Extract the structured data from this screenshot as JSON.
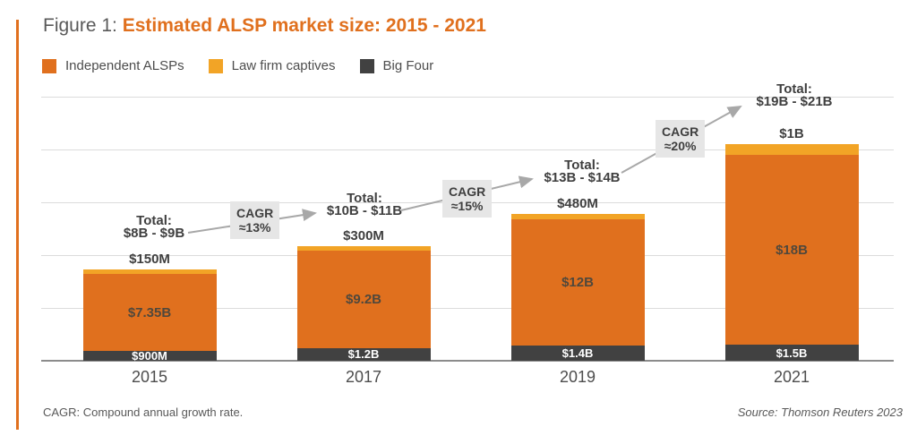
{
  "title": {
    "prefix": "Figure 1: ",
    "main": "Estimated ALSP market size: 2015 - 2021"
  },
  "legend": [
    {
      "label": "Independent ALSPs",
      "color": "#E0701E"
    },
    {
      "label": "Law firm captives",
      "color": "#F2A426"
    },
    {
      "label": "Big Four",
      "color": "#414141"
    }
  ],
  "footer": {
    "left": "CAGR: Compound annual growth rate.",
    "right": "Source: Thomson Reuters 2023"
  },
  "chart_data": {
    "type": "bar",
    "stacked": true,
    "title": "Estimated ALSP market size: 2015 - 2021",
    "unit": "USD billions",
    "categories": [
      "2015",
      "2017",
      "2019",
      "2021"
    ],
    "series": [
      {
        "name": "Big Four",
        "color": "#414141",
        "values": [
          0.9,
          1.2,
          1.4,
          1.5
        ],
        "labels": [
          "$900M",
          "$1.2B",
          "$1.4B",
          "$1.5B"
        ]
      },
      {
        "name": "Independent ALSPs",
        "color": "#E0701E",
        "values": [
          7.35,
          9.2,
          12,
          18
        ],
        "labels": [
          "$7.35B",
          "$9.2B",
          "$12B",
          "$18B"
        ]
      },
      {
        "name": "Law firm captives",
        "color": "#F2A426",
        "values": [
          0.15,
          0.3,
          0.48,
          1.0
        ],
        "labels": [
          "$150M",
          "$300M",
          "$480M",
          "$1B"
        ]
      }
    ],
    "totals": {
      "prefix": "Total:",
      "values": [
        "$8B - $9B",
        "$10B - $11B",
        "$13B - $14B",
        "$19B - $21B"
      ]
    },
    "cagr": [
      {
        "line1": "CAGR",
        "line2": "≈13%"
      },
      {
        "line1": "CAGR",
        "line2": "≈15%"
      },
      {
        "line1": "CAGR",
        "line2": "≈20%"
      }
    ],
    "ylim": [
      0,
      25
    ],
    "gridline_step": 5,
    "grid": true,
    "legend_position": "top",
    "colors": {
      "arrow": "#A8A8A8",
      "gridline": "#DCDCDC",
      "axis": "#8C8C8C",
      "cagr_box": "#E6E6E6"
    }
  }
}
